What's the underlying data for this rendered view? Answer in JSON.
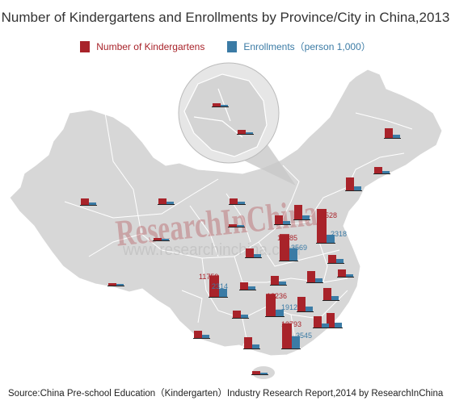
{
  "title": "Number of Kindergartens and Enrollments by Province/City in China,2013",
  "legend": {
    "kindergartens": "Number of Kindergartens",
    "enrollments": "Enrollments（person 1,000）"
  },
  "colors": {
    "kindergartens": "#a8232a",
    "enrollments": "#3b7ba5",
    "map_fill": "#d7d7d7",
    "map_border": "#ffffff"
  },
  "watermark": {
    "brand": "ResearchInChina",
    "url": "www.researchinchina.com"
  },
  "source": "Source:China Pre-school Education（Kindergarten）Industry Research Report,2014 by ResearchInChina",
  "chart_data": {
    "type": "bar",
    "labeled_values": [
      {
        "kindergartens": 18528,
        "enrollments": 2318
      },
      {
        "kindergartens": 14485,
        "enrollments": 3569
      },
      {
        "kindergartens": 11759,
        "enrollments": 2314
      },
      {
        "kindergartens": 12236,
        "enrollments": 1912
      },
      {
        "kindergartens": 13793,
        "enrollments": 3545
      }
    ]
  }
}
